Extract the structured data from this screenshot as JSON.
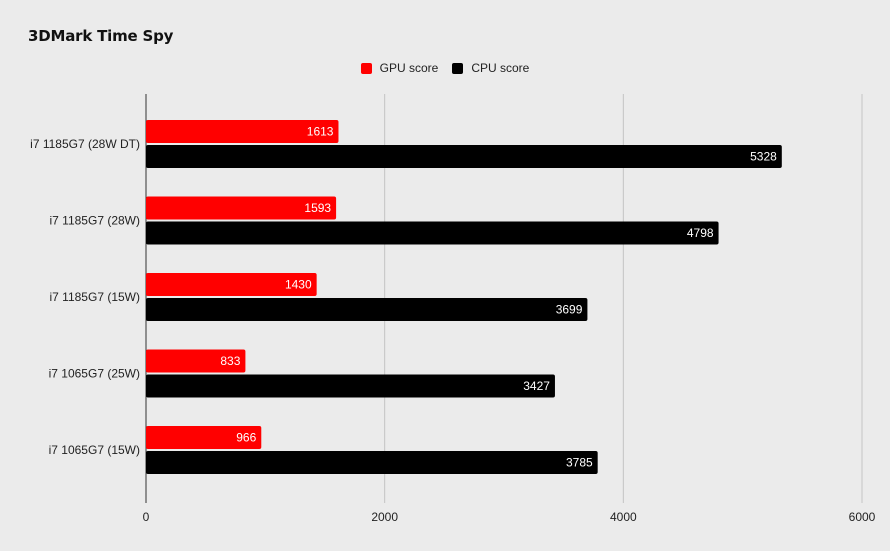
{
  "colors": {
    "background": "#ebebeb",
    "gpu": "#ff0000",
    "cpu": "#000000",
    "grid": "#c4c4c4",
    "axis": "#333333",
    "bar_label": "#ffffff"
  },
  "chart_data": {
    "type": "bar",
    "orientation": "horizontal",
    "title": "3DMark Time Spy",
    "categories": [
      "i7 1185G7 (28W DT)",
      "i7 1185G7 (28W)",
      "i7 1185G7 (15W)",
      "i7 1065G7 (25W)",
      "i7 1065G7 (15W)"
    ],
    "series": [
      {
        "name": "GPU score",
        "color": "#ff0000",
        "values": [
          1613,
          1593,
          1430,
          833,
          966
        ]
      },
      {
        "name": "CPU score",
        "color": "#000000",
        "values": [
          5328,
          4798,
          3699,
          3427,
          3785
        ]
      }
    ],
    "xlim": [
      0,
      6000
    ],
    "xticks": [
      0,
      2000,
      4000,
      6000
    ],
    "xlabel": "",
    "ylabel": "",
    "grid": true,
    "legend_position": "top-center",
    "data_labels": true
  }
}
